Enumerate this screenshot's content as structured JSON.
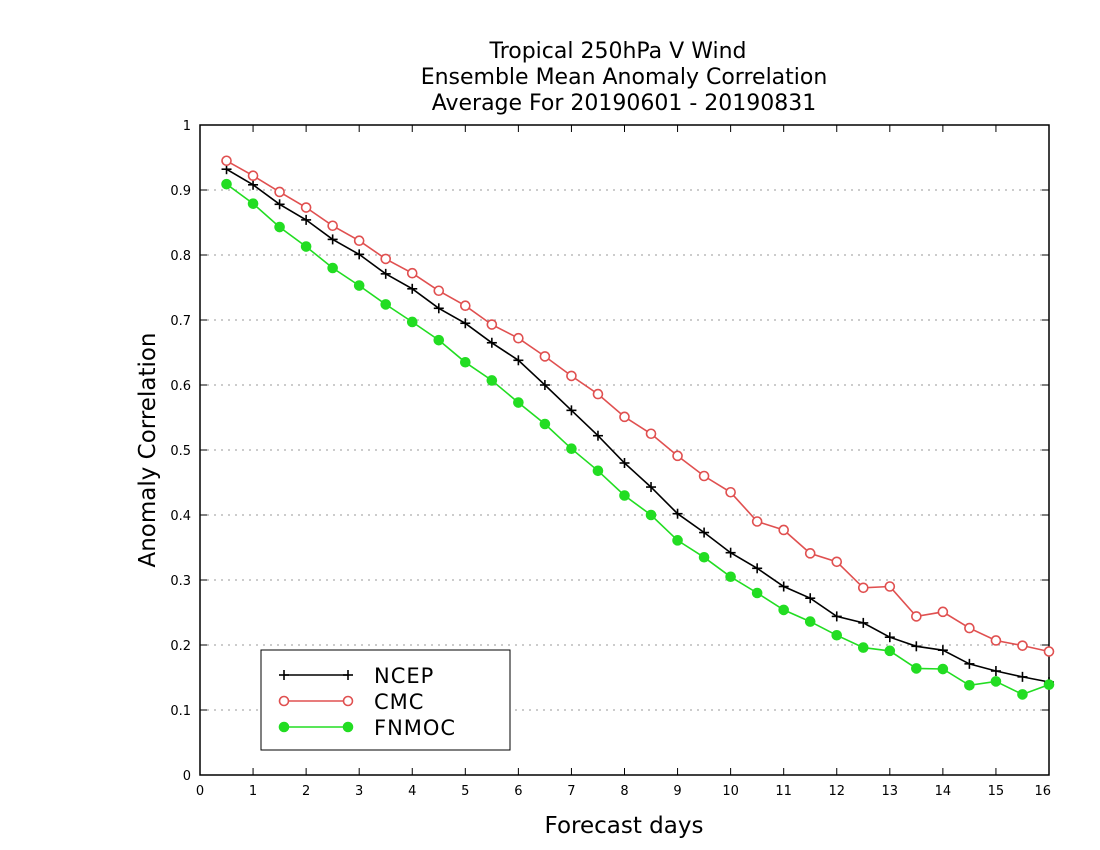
{
  "chart_data": {
    "type": "line",
    "title_lines": [
      "Tropical 250hPa V Wind",
      "Ensemble Mean Anomaly Correlation",
      "Average For 20190601 - 20190831"
    ],
    "xlabel": "Forecast days",
    "ylabel": "Anomaly Correlation",
    "xlim": [
      0,
      16
    ],
    "ylim": [
      0,
      1
    ],
    "xticks": [
      0,
      1,
      2,
      3,
      4,
      5,
      6,
      7,
      8,
      9,
      10,
      11,
      12,
      13,
      14,
      15,
      16
    ],
    "yticks": [
      0,
      0.1,
      0.2,
      0.3,
      0.4,
      0.5,
      0.6,
      0.7,
      0.8,
      0.9,
      1
    ],
    "ytick_labels": [
      "0",
      "0.1",
      "0.2",
      "0.3",
      "0.4",
      "0.5",
      "0.6",
      "0.7",
      "0.8",
      "0.9",
      "1"
    ],
    "grid": "horizontal-dotted",
    "legend_position": "bottom-left",
    "x": [
      0.5,
      1,
      1.5,
      2,
      2.5,
      3,
      3.5,
      4,
      4.5,
      5,
      5.5,
      6,
      6.5,
      7,
      7.5,
      8,
      8.5,
      9,
      9.5,
      10,
      10.5,
      11,
      11.5,
      12,
      12.5,
      13,
      13.5,
      14,
      14.5,
      15,
      15.5,
      16
    ],
    "series": [
      {
        "name": "NCEP",
        "color": "#000000",
        "marker": "plus",
        "values": [
          0.932,
          0.908,
          0.878,
          0.854,
          0.824,
          0.801,
          0.771,
          0.748,
          0.718,
          0.695,
          0.665,
          0.638,
          0.6,
          0.561,
          0.522,
          0.48,
          0.443,
          0.402,
          0.373,
          0.342,
          0.318,
          0.29,
          0.272,
          0.244,
          0.234,
          0.212,
          0.198,
          0.192,
          0.171,
          0.16,
          0.151,
          0.143
        ]
      },
      {
        "name": "CMC",
        "color": "#e05050",
        "marker": "open-circle",
        "values": [
          0.945,
          0.922,
          0.897,
          0.873,
          0.845,
          0.822,
          0.794,
          0.772,
          0.745,
          0.722,
          0.693,
          0.672,
          0.644,
          0.614,
          0.586,
          0.551,
          0.525,
          0.491,
          0.46,
          0.435,
          0.39,
          0.377,
          0.341,
          0.328,
          0.288,
          0.29,
          0.244,
          0.251,
          0.226,
          0.207,
          0.199,
          0.19
        ]
      },
      {
        "name": "FNMOC",
        "color": "#22dd22",
        "marker": "filled-circle",
        "values": [
          0.909,
          0.879,
          0.843,
          0.813,
          0.78,
          0.753,
          0.724,
          0.697,
          0.669,
          0.635,
          0.607,
          0.573,
          0.54,
          0.502,
          0.468,
          0.43,
          0.4,
          0.361,
          0.335,
          0.305,
          0.28,
          0.254,
          0.236,
          0.215,
          0.196,
          0.191,
          0.164,
          0.163,
          0.138,
          0.144,
          0.124,
          0.139
        ]
      }
    ]
  }
}
